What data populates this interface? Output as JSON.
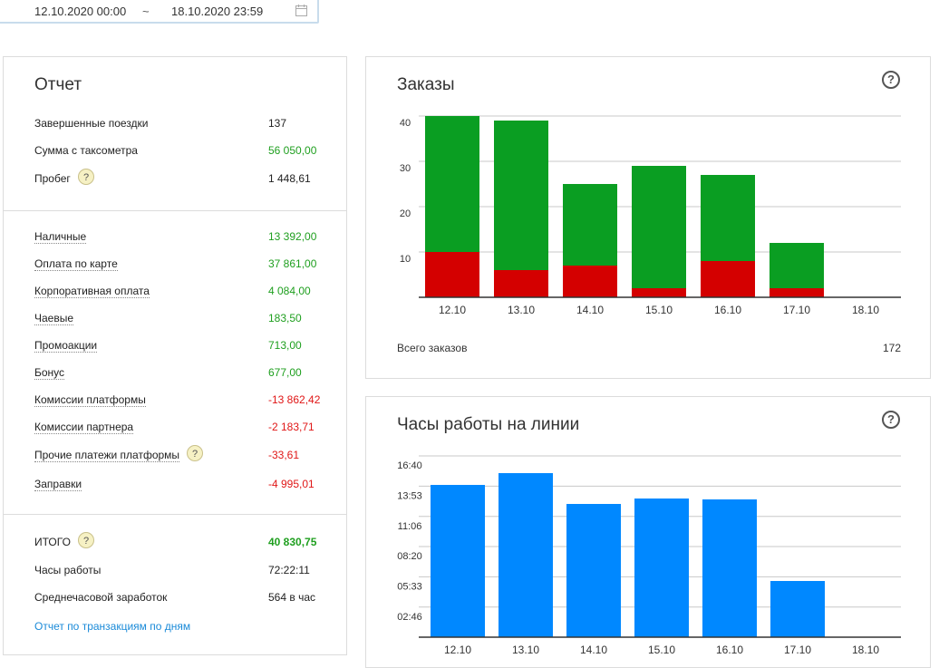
{
  "daterange": {
    "from": "12.10.2020 00:00",
    "separator": "~",
    "to": "18.10.2020 23:59"
  },
  "report": {
    "title": "Отчет",
    "summary": [
      {
        "label": "Завершенные поездки",
        "value": "137",
        "color": "default",
        "help": false,
        "link": false
      },
      {
        "label": "Сумма с таксометра",
        "value": "56 050,00",
        "color": "green",
        "help": false,
        "link": false
      },
      {
        "label": "Пробег",
        "value": "1 448,61",
        "color": "default",
        "help": true,
        "link": false
      }
    ],
    "payments": [
      {
        "label": "Наличные",
        "value": "13 392,00",
        "color": "green",
        "help": false
      },
      {
        "label": "Оплата по карте",
        "value": "37 861,00",
        "color": "green",
        "help": false
      },
      {
        "label": "Корпоративная оплата",
        "value": "4 084,00",
        "color": "green",
        "help": false
      },
      {
        "label": "Чаевые",
        "value": "183,50",
        "color": "green",
        "help": false
      },
      {
        "label": "Промоакции",
        "value": "713,00",
        "color": "green",
        "help": false
      },
      {
        "label": "Бонус",
        "value": "677,00",
        "color": "green",
        "help": false
      },
      {
        "label": "Комиссии платформы",
        "value": "-13 862,42",
        "color": "red",
        "help": false
      },
      {
        "label": "Комиссии партнера",
        "value": "-2 183,71",
        "color": "red",
        "help": false
      },
      {
        "label": "Прочие платежи платформы",
        "value": "-33,61",
        "color": "red",
        "help": true
      },
      {
        "label": "Заправки",
        "value": "-4 995,01",
        "color": "red",
        "help": false
      }
    ],
    "totals": [
      {
        "label": "ИТОГО",
        "value": "40 830,75",
        "color": "green-bold",
        "help": true
      },
      {
        "label": "Часы работы",
        "value": "72:22:11",
        "color": "default",
        "help": false
      },
      {
        "label": "Среднечасовой заработок",
        "value": "564 в час",
        "color": "default",
        "help": false
      }
    ],
    "transactions_link": "Отчет по транзакциям по дням",
    "help_glyph": "?"
  },
  "orders": {
    "title": "Заказы",
    "help_glyph": "?",
    "total_label": "Всего заказов",
    "total_value": "172",
    "chart_data": {
      "type": "bar",
      "stacked": true,
      "categories": [
        "12.10",
        "13.10",
        "14.10",
        "15.10",
        "16.10",
        "17.10",
        "18.10"
      ],
      "series": [
        {
          "values": [
            10,
            6,
            7,
            2,
            8,
            2,
            0
          ],
          "color": "#d40000"
        },
        {
          "values": [
            30,
            33,
            18,
            27,
            19,
            10,
            0
          ],
          "color": "#0a9e22"
        }
      ],
      "yticks": [
        "10",
        "20",
        "30",
        "40"
      ],
      "ylim": [
        0,
        40
      ],
      "grid": true
    }
  },
  "hours": {
    "title": "Часы работы на линии",
    "help_glyph": "?",
    "chart_data": {
      "type": "bar",
      "categories": [
        "12.10",
        "13.10",
        "14.10",
        "15.10",
        "16.10",
        "17.10",
        "18.10"
      ],
      "values_minutes": [
        840,
        905,
        735,
        765,
        760,
        310,
        0
      ],
      "color": "#0088ff",
      "yticks": [
        {
          "label": "02:46",
          "minutes": 166
        },
        {
          "label": "05:33",
          "minutes": 333
        },
        {
          "label": "08:20",
          "minutes": 500
        },
        {
          "label": "11:06",
          "minutes": 666
        },
        {
          "label": "13:53",
          "minutes": 833
        },
        {
          "label": "16:40",
          "minutes": 1000
        }
      ],
      "ylim_minutes": [
        0,
        1000
      ],
      "grid": true
    }
  }
}
